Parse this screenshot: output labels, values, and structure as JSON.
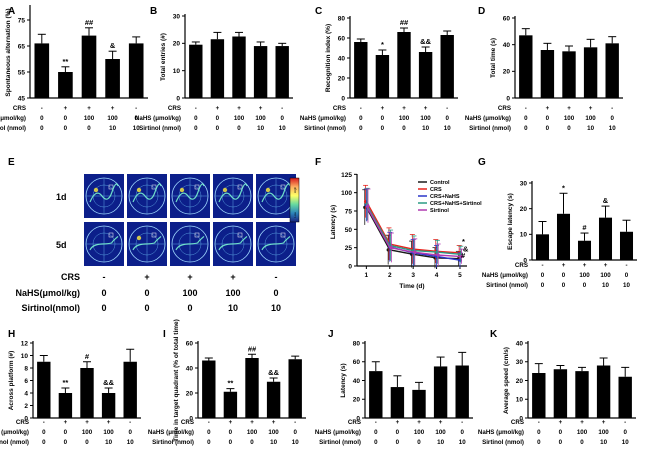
{
  "figure": {
    "row_labels": {
      "crs": "CRS",
      "nahs_umol": "NaHS (μmol/kg)",
      "sirtinol_nmol": "Sirtinol (nmol)",
      "nahs_umol_nospace": "NaHS(μmol/kg)",
      "sirtinol_nospace": "Sirtinol(nmol)"
    },
    "group_conditions": {
      "crs": [
        "-",
        "+",
        "+",
        "+",
        "-"
      ],
      "nahs": [
        "0",
        "0",
        "100",
        "100",
        "0"
      ],
      "sirtinol": [
        "0",
        "0",
        "0",
        "10",
        "10"
      ]
    },
    "panel_E": {
      "tag": "E",
      "day_labels": [
        "1d",
        "5d"
      ],
      "colorbar_labels": [
        "High",
        "Low"
      ]
    }
  },
  "chart_data": [
    {
      "id": "A",
      "type": "bar",
      "tag": "A",
      "ylabel": "Spontaneous alternation (%)",
      "ylim": [
        45,
        80
      ],
      "yticks": [
        "45",
        "55",
        "65",
        "75"
      ],
      "values": [
        66,
        55,
        69,
        60,
        66
      ],
      "errors": [
        3.5,
        2,
        3,
        3,
        2.5
      ],
      "annotations": [
        "",
        "**",
        "##",
        "&",
        ""
      ],
      "bar_color": "#000000"
    },
    {
      "id": "B",
      "type": "bar",
      "tag": "B",
      "ylabel": "Total entries (#)",
      "ylim": [
        0,
        30
      ],
      "yticks": [
        "0",
        "10",
        "20",
        "30"
      ],
      "values": [
        19.5,
        21.5,
        22.5,
        19,
        19
      ],
      "errors": [
        1,
        2.5,
        1.5,
        1.5,
        1
      ],
      "annotations": [
        "",
        "",
        "",
        "",
        ""
      ],
      "bar_color": "#000000"
    },
    {
      "id": "C",
      "type": "bar",
      "tag": "C",
      "ylabel": "Recognition index (%)",
      "ylim": [
        0,
        80
      ],
      "yticks": [
        "0",
        "20",
        "40",
        "60",
        "80"
      ],
      "values": [
        56,
        43,
        66,
        46,
        63
      ],
      "errors": [
        3,
        5,
        4,
        5,
        4
      ],
      "annotations": [
        "",
        "*",
        "##",
        "&&",
        ""
      ],
      "bar_color": "#000000"
    },
    {
      "id": "D",
      "type": "bar",
      "tag": "D",
      "ylabel": "Total time (s)",
      "ylim": [
        0,
        60
      ],
      "yticks": [
        "0",
        "20",
        "40",
        "60"
      ],
      "values": [
        47,
        36,
        35,
        38,
        41
      ],
      "errors": [
        5,
        5,
        4,
        6,
        5
      ],
      "annotations": [
        "",
        "",
        "",
        "",
        ""
      ],
      "bar_color": "#000000"
    },
    {
      "id": "F",
      "type": "line",
      "tag": "F",
      "title": "",
      "xlabel": "Time (d)",
      "ylabel": "Latency (s)",
      "x": [
        1,
        2,
        3,
        4,
        5
      ],
      "xlim": [
        0.6,
        5.3
      ],
      "ylim": [
        0,
        120
      ],
      "yticks": [
        "0",
        "25",
        "50",
        "75",
        "100",
        "125"
      ],
      "series": [
        {
          "name": "Control",
          "color": "#1a1a1a",
          "values": [
            80,
            22,
            16,
            11,
            10
          ],
          "errors": [
            24,
            20,
            18,
            14,
            10
          ]
        },
        {
          "name": "CRS",
          "color": "#e8231c",
          "values": [
            88,
            30,
            23,
            20,
            18
          ],
          "errors": [
            22,
            22,
            20,
            16,
            10
          ]
        },
        {
          "name": "CRS+NaHS",
          "color": "#2a35c9",
          "values": [
            83,
            26,
            18,
            13,
            8
          ],
          "errors": [
            22,
            20,
            18,
            15,
            10
          ]
        },
        {
          "name": "CRS+NaHS+Sirtinol",
          "color": "#2a9a84",
          "values": [
            84,
            28,
            21,
            19,
            16
          ],
          "errors": [
            22,
            21,
            20,
            16,
            11
          ]
        },
        {
          "name": "Sirtinol",
          "color": "#b03ab0",
          "values": [
            82,
            25,
            19,
            15,
            13
          ],
          "errors": [
            23,
            20,
            18,
            15,
            10
          ]
        }
      ],
      "annotations": [
        "*",
        "&",
        "#"
      ],
      "legend": "top-right"
    },
    {
      "id": "G",
      "type": "bar",
      "tag": "G",
      "ylabel": "Escape latency (s)",
      "ylim": [
        0,
        30
      ],
      "yticks": [
        "0",
        "10",
        "20",
        "30"
      ],
      "values": [
        10,
        18,
        7.5,
        16.5,
        11
      ],
      "errors": [
        5,
        8,
        3,
        4.5,
        4.5
      ],
      "annotations": [
        "",
        "*",
        "#",
        "&",
        ""
      ],
      "bar_color": "#000000"
    },
    {
      "id": "H",
      "type": "bar",
      "tag": "H",
      "ylabel": "Across platform (#)",
      "ylim": [
        0,
        12
      ],
      "yticks": [
        "0",
        "2",
        "4",
        "6",
        "8",
        "10",
        "12"
      ],
      "values": [
        9,
        4,
        8,
        4,
        9
      ],
      "errors": [
        1,
        0.8,
        1,
        0.8,
        2
      ],
      "annotations": [
        "",
        "**",
        "#",
        "&&",
        ""
      ],
      "bar_color": "#000000"
    },
    {
      "id": "I",
      "type": "bar",
      "tag": "I",
      "ylabel": "Time in target quadrant (% of total time)",
      "ylim": [
        0,
        60
      ],
      "yticks": [
        "0",
        "20",
        "40",
        "60"
      ],
      "values": [
        46,
        21,
        48,
        29,
        47
      ],
      "errors": [
        2,
        2.5,
        3,
        3,
        2.5
      ],
      "annotations": [
        "",
        "**",
        "##",
        "&&",
        ""
      ],
      "bar_color": "#000000"
    },
    {
      "id": "J",
      "type": "bar",
      "tag": "J",
      "ylabel": "Latency (s)",
      "ylim": [
        0,
        80
      ],
      "yticks": [
        "0",
        "20",
        "40",
        "60",
        "80"
      ],
      "values": [
        50,
        33,
        30,
        55,
        56
      ],
      "errors": [
        10,
        12,
        8,
        10,
        14
      ],
      "annotations": [
        "",
        "",
        "",
        "",
        ""
      ],
      "bar_color": "#000000"
    },
    {
      "id": "K",
      "type": "bar",
      "tag": "K",
      "ylabel": "Average speed (cm/s)",
      "ylim": [
        0,
        40
      ],
      "yticks": [
        "0",
        "10",
        "20",
        "30",
        "40"
      ],
      "values": [
        24,
        26,
        25,
        28,
        22
      ],
      "errors": [
        5,
        2,
        2,
        4,
        5
      ],
      "annotations": [
        "",
        "",
        "",
        "",
        ""
      ],
      "bar_color": "#000000"
    }
  ]
}
